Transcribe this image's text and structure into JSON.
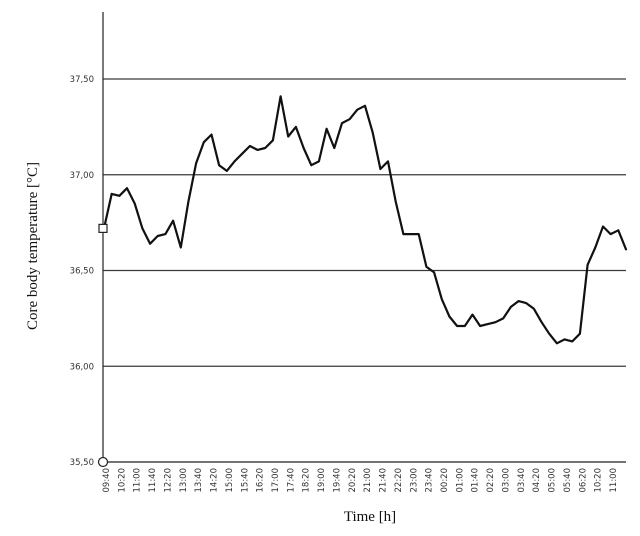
{
  "chart_data": {
    "type": "line",
    "title": "",
    "xlabel": "Time [h]",
    "ylabel": "Core body temperature  [°C]",
    "ylim": [
      35.5,
      37.85
    ],
    "y_ticks": [
      "35,50",
      "36,00",
      "36,50",
      "37,00",
      "37,50"
    ],
    "y_tick_values": [
      35.5,
      36.0,
      36.5,
      37.0,
      37.5
    ],
    "x_tick_labels": [
      "09:40",
      "10:20",
      "11:00",
      "11:40",
      "12:20",
      "13:00",
      "13:40",
      "14:20",
      "15:00",
      "15:40",
      "16:20",
      "17:00",
      "17:40",
      "18:20",
      "19:00",
      "19:40",
      "20:20",
      "21:00",
      "21:40",
      "22:20",
      "23:00",
      "23:40",
      "00:20",
      "01:00",
      "01:40",
      "02:20",
      "03:00",
      "03:40",
      "04:20",
      "05:00",
      "05:40",
      "06:20",
      "10:20",
      "11:00"
    ],
    "grid": true,
    "legend": "none",
    "series": [
      {
        "color": "#111111",
        "values": [
          36.72,
          36.9,
          36.89,
          36.93,
          36.85,
          36.72,
          36.64,
          36.68,
          36.69,
          36.76,
          36.62,
          36.86,
          37.06,
          37.17,
          37.21,
          37.05,
          37.02,
          37.07,
          37.11,
          37.15,
          37.13,
          37.14,
          37.18,
          37.41,
          37.2,
          37.25,
          37.14,
          37.05,
          37.07,
          37.24,
          37.14,
          37.27,
          37.29,
          37.34,
          37.36,
          37.22,
          37.03,
          37.07,
          36.86,
          36.69,
          36.69,
          36.69,
          36.52,
          36.49,
          36.35,
          36.26,
          36.21,
          36.21,
          36.27,
          36.21,
          36.22,
          36.23,
          36.25,
          36.31,
          36.34,
          36.33,
          36.3,
          36.23,
          36.17,
          36.12,
          36.14,
          36.13,
          36.17,
          36.53,
          36.62,
          36.73,
          36.69,
          36.71,
          36.61
        ]
      }
    ]
  }
}
